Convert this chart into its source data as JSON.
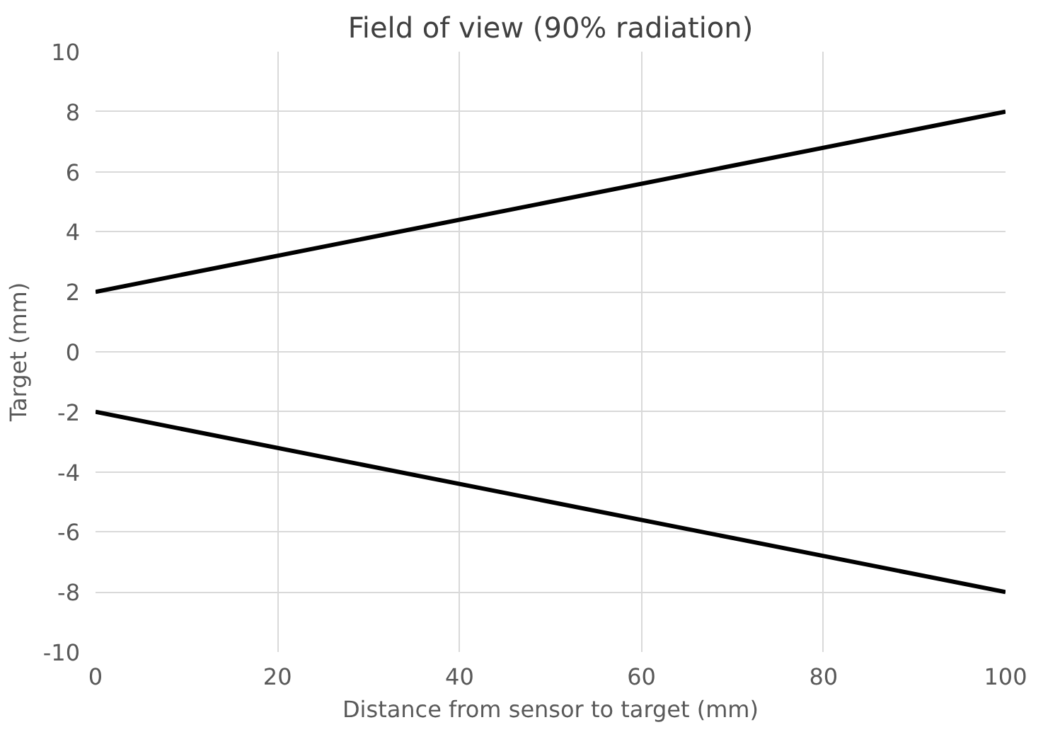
{
  "chart_data": {
    "type": "line",
    "title": "Field of view (90% radiation)",
    "xlabel": "Distance from sensor to target (mm)",
    "ylabel": "Target (mm)",
    "x": [
      0,
      100
    ],
    "series": [
      {
        "color": "#000000",
        "values": [
          2,
          8
        ]
      },
      {
        "color": "#000000",
        "values": [
          -2,
          -8
        ]
      }
    ],
    "xlim": [
      0,
      100
    ],
    "xticks": [
      0,
      20,
      40,
      60,
      80,
      100
    ],
    "ylim": [
      -10,
      10
    ],
    "yticks": [
      -10,
      -8,
      -6,
      -4,
      -2,
      0,
      2,
      4,
      6,
      8,
      10
    ],
    "grid": true,
    "marker": "none",
    "line_style": "solid"
  }
}
